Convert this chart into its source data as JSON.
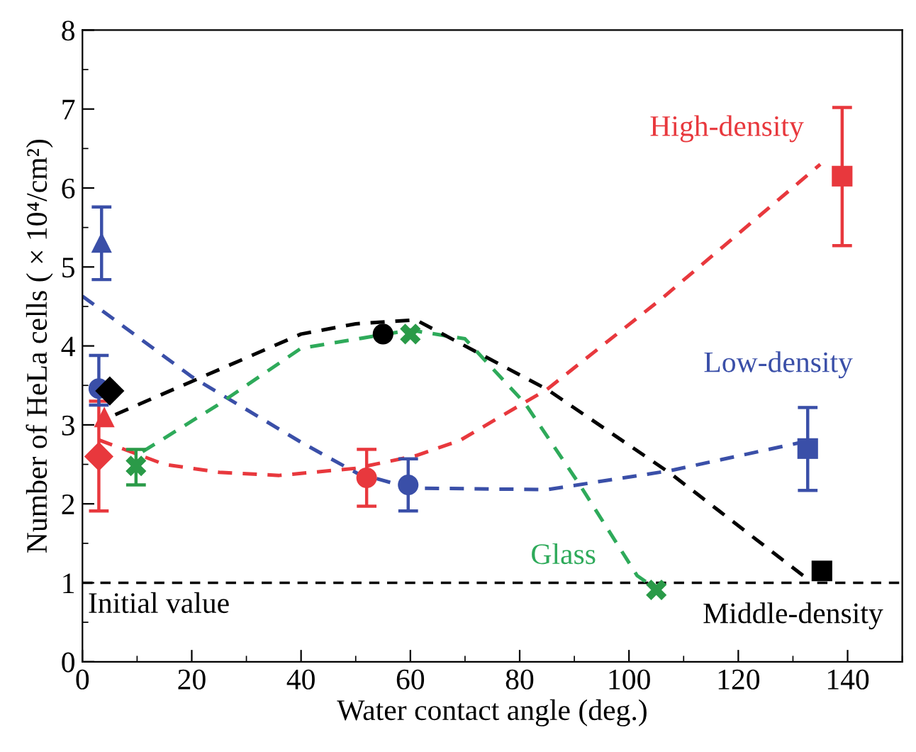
{
  "chart_data": {
    "type": "scatter",
    "xlabel": "Water contact angle (deg.)",
    "ylabel": "Number of HeLa cells ( × 10⁴/cm²)",
    "xlim": [
      0,
      150
    ],
    "xticks": [
      0,
      20,
      40,
      60,
      80,
      100,
      120,
      140
    ],
    "ylim": [
      0,
      8
    ],
    "yticks": [
      0,
      1,
      2,
      3,
      4,
      5,
      6,
      7,
      8
    ],
    "ref_lines": [
      {
        "axis": "y",
        "value": 1,
        "label": "Initial value",
        "color": "#000000",
        "line_style": "dashed"
      }
    ],
    "series": [
      {
        "type": "line",
        "name": "High-density",
        "color": "#e8383d",
        "line_style": "dashed",
        "marker": "none",
        "x": [
          3,
          15,
          25,
          36,
          50,
          61,
          69,
          85,
          106,
          135
        ],
        "values": [
          2.81,
          2.5,
          2.4,
          2.36,
          2.45,
          2.61,
          2.8,
          3.45,
          4.6,
          6.3
        ]
      },
      {
        "type": "line",
        "name": "Low-density",
        "color": "#3a4fa8",
        "line_style": "dashed",
        "marker": "none",
        "x": [
          0,
          20,
          40,
          50.2,
          60,
          85,
          107.5,
          132.3
        ],
        "values": [
          4.63,
          3.61,
          2.78,
          2.39,
          2.2,
          2.18,
          2.42,
          2.79
        ]
      },
      {
        "type": "line",
        "name": "Glass",
        "color": "#2eaa5a",
        "line_style": "dashed",
        "marker": "none",
        "x": [
          11,
          24.7,
          40,
          60,
          70,
          81,
          91,
          101.5,
          104
        ],
        "values": [
          2.66,
          3.25,
          3.97,
          4.2,
          4.09,
          3.27,
          2.24,
          1.09,
          0.97
        ]
      },
      {
        "type": "line",
        "name": "Middle-density",
        "color": "#000000",
        "line_style": "dashed",
        "marker": "none",
        "x": [
          6,
          20,
          40,
          50,
          61,
          85,
          107.5,
          133
        ],
        "values": [
          3.13,
          3.55,
          4.15,
          4.28,
          4.33,
          3.45,
          2.39,
          1.03
        ]
      },
      {
        "color": "#e8383d",
        "marker": "diamond",
        "x": [
          3
        ],
        "values": [
          2.6
        ],
        "errors": [
          [
            1.91,
            3.3
          ]
        ]
      },
      {
        "color": "#e8383d",
        "marker": "triangle",
        "x": [
          4
        ],
        "values": [
          3.1
        ]
      },
      {
        "color": "#e8383d",
        "marker": "circle",
        "x": [
          52
        ],
        "values": [
          2.33
        ],
        "errors": [
          [
            1.97,
            2.69
          ]
        ]
      },
      {
        "color": "#e8383d",
        "marker": "square",
        "x": [
          139
        ],
        "values": [
          6.15
        ],
        "errors": [
          [
            5.27,
            7.02
          ]
        ]
      },
      {
        "color": "#3a4fa8",
        "marker": "circle",
        "x": [
          3
        ],
        "values": [
          3.46
        ],
        "errors": [
          [
            3.25,
            3.88
          ]
        ]
      },
      {
        "color": "#3a4fa8",
        "marker": "triangle",
        "x": [
          3.5
        ],
        "values": [
          5.31
        ],
        "errors": [
          [
            4.84,
            5.76
          ]
        ]
      },
      {
        "color": "#3a4fa8",
        "marker": "circle",
        "x": [
          59.6
        ],
        "values": [
          2.24
        ],
        "errors": [
          [
            1.91,
            2.57
          ]
        ]
      },
      {
        "color": "#3a4fa8",
        "marker": "square",
        "x": [
          132.7
        ],
        "values": [
          2.7
        ],
        "errors": [
          [
            2.17,
            3.22
          ]
        ]
      },
      {
        "color": "#000000",
        "marker": "diamond",
        "x": [
          5
        ],
        "values": [
          3.43
        ]
      },
      {
        "color": "#000000",
        "marker": "circle",
        "x": [
          55
        ],
        "values": [
          4.15
        ]
      },
      {
        "color": "#000000",
        "marker": "square",
        "x": [
          135.3
        ],
        "values": [
          1.15
        ]
      },
      {
        "color": "#2a9a48",
        "marker": "cross",
        "x": [
          9.8,
          60,
          105
        ],
        "values": [
          2.48,
          4.15,
          0.91
        ],
        "errors": [
          [
            2.24,
            2.69
          ],
          null,
          null
        ]
      }
    ]
  }
}
